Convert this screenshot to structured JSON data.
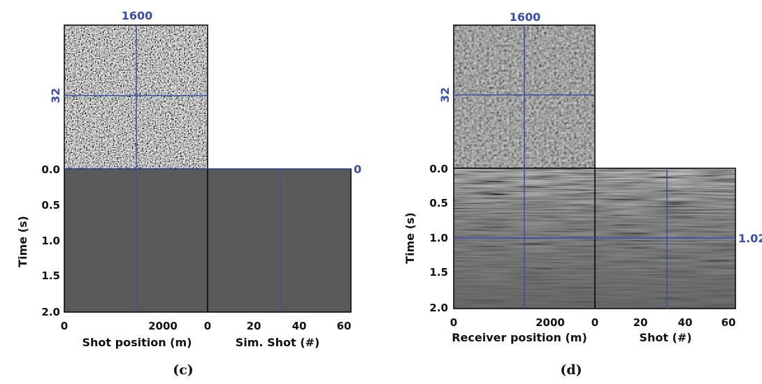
{
  "colors": {
    "cursor": "#3a4da8",
    "frame": "#000000",
    "flat_panel": "#5a5a5a"
  },
  "panels": [
    {
      "id": "c",
      "caption": "(c)",
      "noise_style": "high-contrast",
      "top_marker": "1600",
      "left_marker": "32",
      "right_marker": "0",
      "time_label": "Time (s)",
      "time_ticks": [
        "0.0",
        "0.5",
        "1.0",
        "1.5",
        "2.0"
      ],
      "left_x_label": "Shot position (m)",
      "left_x_ticks": [
        "0",
        "2000"
      ],
      "right_x_label": "Sim. Shot (#)",
      "right_x_ticks": [
        "0",
        "20",
        "40",
        "60"
      ]
    },
    {
      "id": "d",
      "caption": "(d)",
      "noise_style": "low-contrast",
      "top_marker": "1600",
      "left_marker": "32",
      "right_marker": "1.02",
      "time_label": "Time (s)",
      "time_ticks": [
        "0.0",
        "0.5",
        "1.0",
        "1.5",
        "2.0"
      ],
      "left_x_label": "Receiver position (m)",
      "left_x_ticks": [
        "0",
        "2000"
      ],
      "right_x_label": "Shot (#)",
      "right_x_ticks": [
        "0",
        "20",
        "40",
        "60"
      ]
    }
  ]
}
